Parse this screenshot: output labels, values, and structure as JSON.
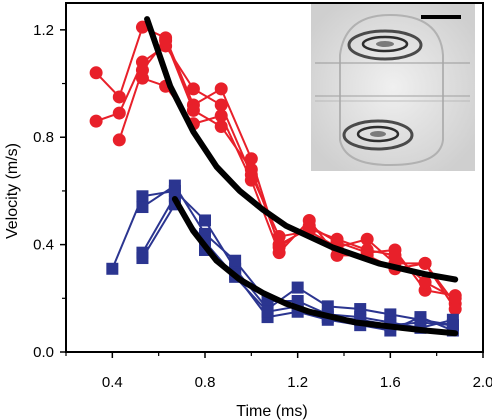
{
  "chart_data": {
    "type": "scatter",
    "title": "",
    "xlabel": "Time (ms)",
    "ylabel": "Velocity (m/s)",
    "xlim": [
      0.2,
      2.0
    ],
    "ylim": [
      0.0,
      1.3
    ],
    "xticks": [
      0.4,
      0.8,
      1.2,
      1.6,
      2.0
    ],
    "xtick_labels": [
      "0.4",
      "0.8",
      "1.2",
      "1.6",
      "2.0"
    ],
    "yticks": [
      0.0,
      0.4,
      0.8,
      1.2
    ],
    "ytick_labels": [
      "0.0",
      "0.4",
      "0.8",
      "1.2"
    ],
    "grid": false,
    "legend": "none",
    "inset": "microscope image of a droplet with scale bar, top-right",
    "colors": {
      "red": "#e8202a",
      "blue": "#2b3590",
      "fit": "#000000"
    },
    "series": [
      {
        "color": "red",
        "marker": "circle",
        "x": [
          0.33,
          0.43,
          0.53,
          0.63,
          0.75,
          0.87,
          1.0,
          1.12,
          1.25,
          1.37,
          1.5,
          1.62,
          1.75,
          1.88
        ],
        "y": [
          1.04,
          0.95,
          1.21,
          1.17,
          0.92,
          0.98,
          0.72,
          0.39,
          0.47,
          0.41,
          0.37,
          0.38,
          0.23,
          0.21
        ]
      },
      {
        "color": "red",
        "marker": "circle",
        "x": [
          0.33,
          0.43,
          0.53,
          0.63,
          0.75,
          0.87,
          1.0,
          1.12,
          1.25,
          1.37,
          1.5,
          1.62,
          1.75,
          1.88
        ],
        "y": [
          0.86,
          0.89,
          1.08,
          1.14,
          0.98,
          0.92,
          0.66,
          0.43,
          0.45,
          0.39,
          0.42,
          0.33,
          0.33,
          0.18
        ]
      },
      {
        "color": "red",
        "marker": "circle",
        "x": [
          0.53,
          0.63,
          0.75,
          0.87,
          1.0,
          1.12,
          1.25,
          1.37,
          1.5,
          1.62,
          1.75,
          1.88
        ],
        "y": [
          1.02,
          0.99,
          0.85,
          0.88,
          0.64,
          0.37,
          0.49,
          0.36,
          0.36,
          0.31,
          0.33,
          0.16
        ]
      },
      {
        "color": "red",
        "marker": "circle",
        "x": [
          0.43,
          0.53,
          0.63,
          0.75,
          0.87,
          1.0,
          1.12,
          1.25,
          1.37,
          1.5,
          1.62,
          1.75,
          1.88
        ],
        "y": [
          0.79,
          1.05,
          1.16,
          0.9,
          0.84,
          0.68,
          0.4,
          0.46,
          0.42,
          0.38,
          0.36,
          0.26,
          0.2
        ]
      },
      {
        "color": "blue",
        "marker": "square",
        "x": [
          0.4,
          0.53,
          0.67,
          0.8,
          0.93,
          1.07,
          1.2,
          1.33,
          1.47,
          1.6,
          1.73,
          1.87
        ],
        "y": [
          0.31,
          0.58,
          0.6,
          0.49,
          0.31,
          0.16,
          0.24,
          0.17,
          0.16,
          0.14,
          0.12,
          0.1
        ]
      },
      {
        "color": "blue",
        "marker": "square",
        "x": [
          0.53,
          0.67,
          0.8,
          0.93,
          1.07,
          1.2,
          1.33,
          1.47,
          1.6,
          1.73,
          1.87
        ],
        "y": [
          0.54,
          0.62,
          0.44,
          0.34,
          0.19,
          0.19,
          0.14,
          0.13,
          0.11,
          0.09,
          0.12
        ]
      },
      {
        "color": "blue",
        "marker": "square",
        "x": [
          0.53,
          0.67,
          0.8,
          0.93,
          1.07,
          1.2,
          1.33,
          1.47,
          1.6,
          1.73,
          1.87
        ],
        "y": [
          0.37,
          0.58,
          0.38,
          0.29,
          0.13,
          0.15,
          0.12,
          0.1,
          0.08,
          0.13,
          0.08
        ]
      },
      {
        "color": "blue",
        "marker": "square",
        "x": [
          0.53,
          0.67,
          0.8,
          0.93,
          1.07,
          1.2,
          1.33,
          1.47,
          1.6,
          1.73,
          1.87
        ],
        "y": [
          0.35,
          0.55,
          0.41,
          0.28,
          0.15,
          0.17,
          0.13,
          0.12,
          0.1,
          0.11,
          0.1
        ]
      }
    ],
    "fits": [
      {
        "color": "fit",
        "x": [
          0.55,
          0.65,
          0.75,
          0.85,
          0.95,
          1.05,
          1.15,
          1.25,
          1.35,
          1.45,
          1.55,
          1.65,
          1.75,
          1.88
        ],
        "y": [
          1.24,
          0.99,
          0.82,
          0.69,
          0.6,
          0.53,
          0.47,
          0.43,
          0.39,
          0.36,
          0.33,
          0.31,
          0.29,
          0.27
        ]
      },
      {
        "color": "fit",
        "x": [
          0.67,
          0.75,
          0.85,
          0.95,
          1.05,
          1.15,
          1.25,
          1.35,
          1.45,
          1.55,
          1.65,
          1.75,
          1.88
        ],
        "y": [
          0.57,
          0.45,
          0.34,
          0.27,
          0.22,
          0.18,
          0.15,
          0.13,
          0.11,
          0.1,
          0.09,
          0.08,
          0.07
        ]
      }
    ]
  }
}
